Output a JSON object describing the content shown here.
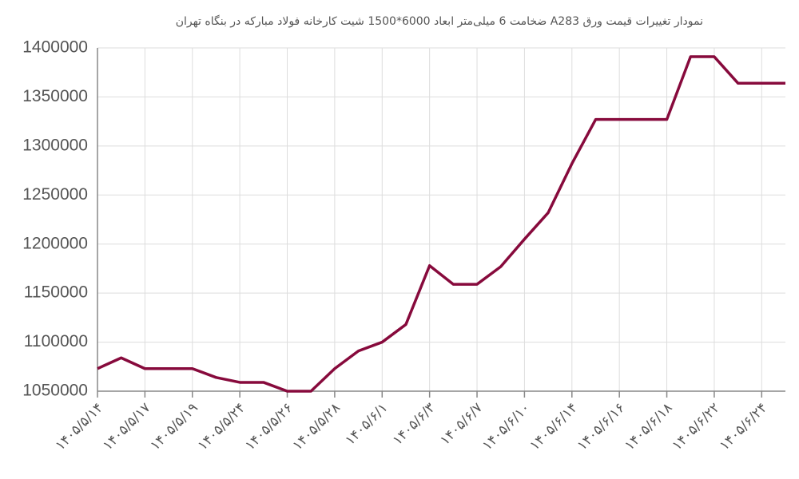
{
  "chart_data": {
    "type": "line",
    "title": "نمودار تغییرات قیمت ورق A283  ضخامت 6 میلی‌متر ابعاد 6000*1500 شیت کارخانه فولاد مبارکه در بنگاه تهران",
    "categories": [
      "۱۴۰۵/۵/۱۴",
      null,
      "۱۴۰۵/۵/۱۷",
      null,
      "۱۴۰۵/۵/۱۹",
      null,
      "۱۴۰۵/۵/۲۴",
      null,
      "۱۴۰۵/۵/۲۶",
      null,
      "۱۴۰۵/۵/۲۸",
      null,
      "۱۴۰۵/۶/۱",
      null,
      "۱۴۰۵/۶/۳",
      null,
      "۱۴۰۵/۶/۷",
      null,
      "۱۴۰۵/۶/۱۰",
      null,
      "۱۴۰۵/۶/۱۴",
      null,
      "۱۴۰۵/۶/۱۶",
      null,
      "۱۴۰۵/۶/۱۸",
      null,
      "۱۴۰۵/۶/۲۲",
      null,
      "۱۴۰۵/۶/۲۴",
      null
    ],
    "series": [
      {
        "color": "#870a3c",
        "values": [
          1073000,
          1084000,
          1073000,
          1073000,
          1073000,
          1064000,
          1059000,
          1059000,
          1050000,
          1050000,
          1073000,
          1091000,
          1100000,
          1118000,
          1178000,
          1159000,
          1159000,
          1177000,
          1205000,
          1232000,
          1282000,
          1327000,
          1327000,
          1327000,
          1327000,
          1391000,
          1391000,
          1364000,
          1364000,
          1364000
        ]
      }
    ],
    "ylim": [
      1050000,
      1400000
    ],
    "yticks": [
      1050000,
      1100000,
      1150000,
      1200000,
      1250000,
      1300000,
      1350000,
      1400000
    ],
    "grid": true
  }
}
